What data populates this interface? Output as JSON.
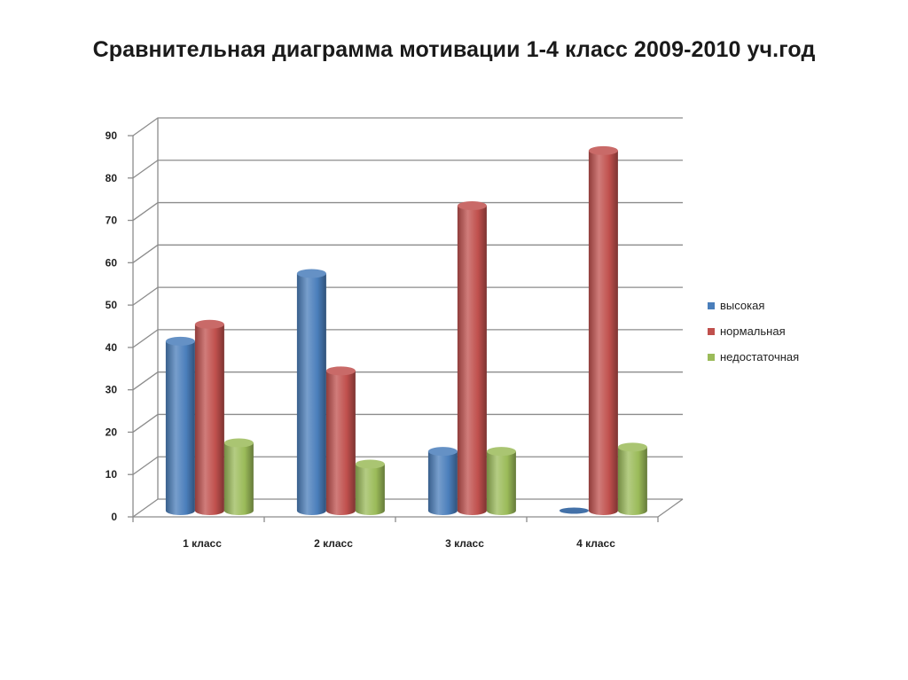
{
  "title": "Сравнительная диаграмма мотивации 1-4 класс 2009-2010 уч.год",
  "chart_data": {
    "type": "bar",
    "title": "Сравнительная диаграмма мотивации 1-4 класс 2009-2010 уч.год",
    "categories": [
      "1 класс",
      "2 класс",
      "3 класс",
      "4 класс"
    ],
    "series": [
      {
        "name": "высокая",
        "values": [
          40,
          56,
          14,
          0
        ],
        "color": "#4a7ebb"
      },
      {
        "name": "нормальная",
        "values": [
          44,
          33,
          72,
          85
        ],
        "color": "#c0504d"
      },
      {
        "name": "недостаточная",
        "values": [
          16,
          11,
          14,
          15
        ],
        "color": "#9bbb59"
      }
    ],
    "ylim": [
      0,
      90
    ],
    "yticks": [
      0,
      10,
      20,
      30,
      40,
      50,
      60,
      70,
      80,
      90
    ],
    "grid": true,
    "legend": "right",
    "style": "3d-cylinder"
  }
}
